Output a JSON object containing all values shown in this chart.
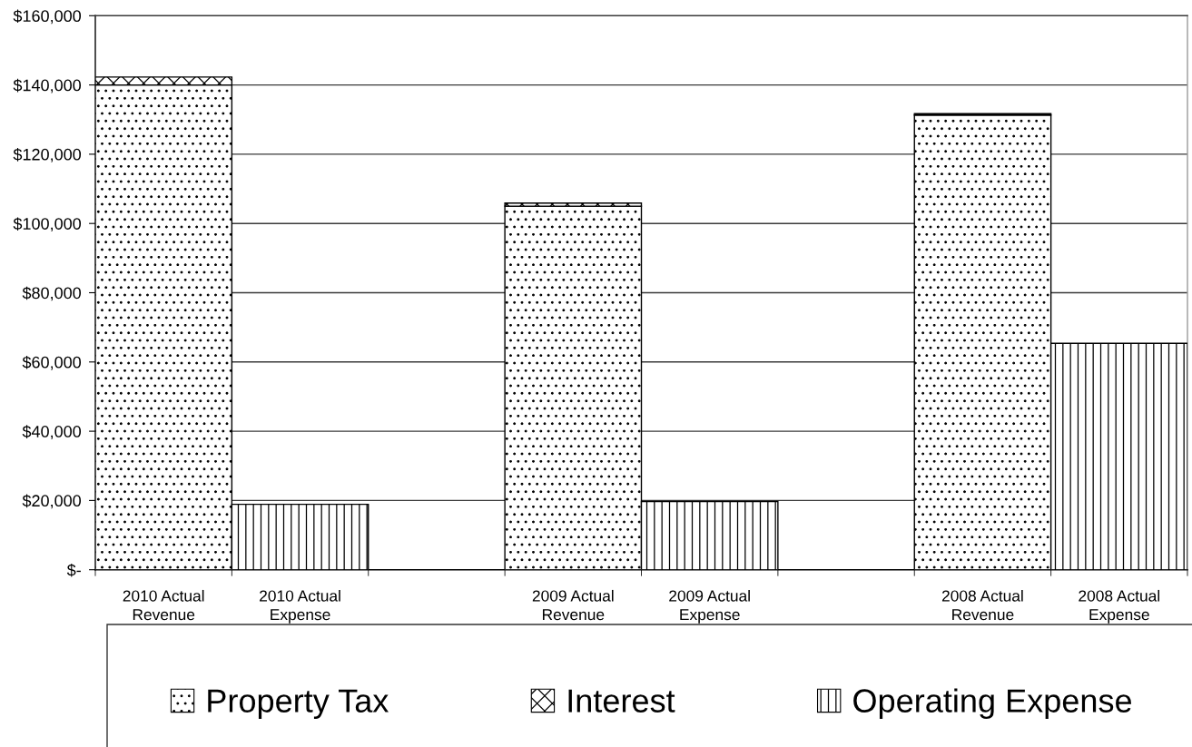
{
  "chart_data": {
    "type": "bar",
    "stacked": true,
    "categories": [
      "2010 Actual\nRevenue",
      "2010 Actual\nExpense",
      null,
      "2009 Actual\nRevenue",
      "2009 Actual\nExpense",
      null,
      "2008 Actual\nRevenue",
      "2008 Actual\nExpense"
    ],
    "series": [
      {
        "name": "Property Tax",
        "color": "#000000",
        "values": [
          140000,
          null,
          null,
          105000,
          null,
          null,
          131300,
          null
        ]
      },
      {
        "name": "Interest",
        "color": "#000000",
        "values": [
          2300,
          null,
          null,
          900,
          null,
          null,
          400,
          null
        ]
      },
      {
        "name": "Operating Expense",
        "color": "#000000",
        "values": [
          null,
          18900,
          null,
          null,
          19700,
          null,
          null,
          65400
        ]
      }
    ],
    "ylim": [
      0,
      160000
    ],
    "yticks": [
      {
        "value": 0,
        "label": "$-"
      },
      {
        "value": 20000,
        "label": "$20,000"
      },
      {
        "value": 40000,
        "label": "$40,000"
      },
      {
        "value": 60000,
        "label": "$60,000"
      },
      {
        "value": 80000,
        "label": "$80,000"
      },
      {
        "value": 100000,
        "label": "$100,000"
      },
      {
        "value": 120000,
        "label": "$120,000"
      },
      {
        "value": 140000,
        "label": "$140,000"
      },
      {
        "value": 160000,
        "label": "$160,000"
      }
    ],
    "grid": "y",
    "legend": "bottom"
  }
}
